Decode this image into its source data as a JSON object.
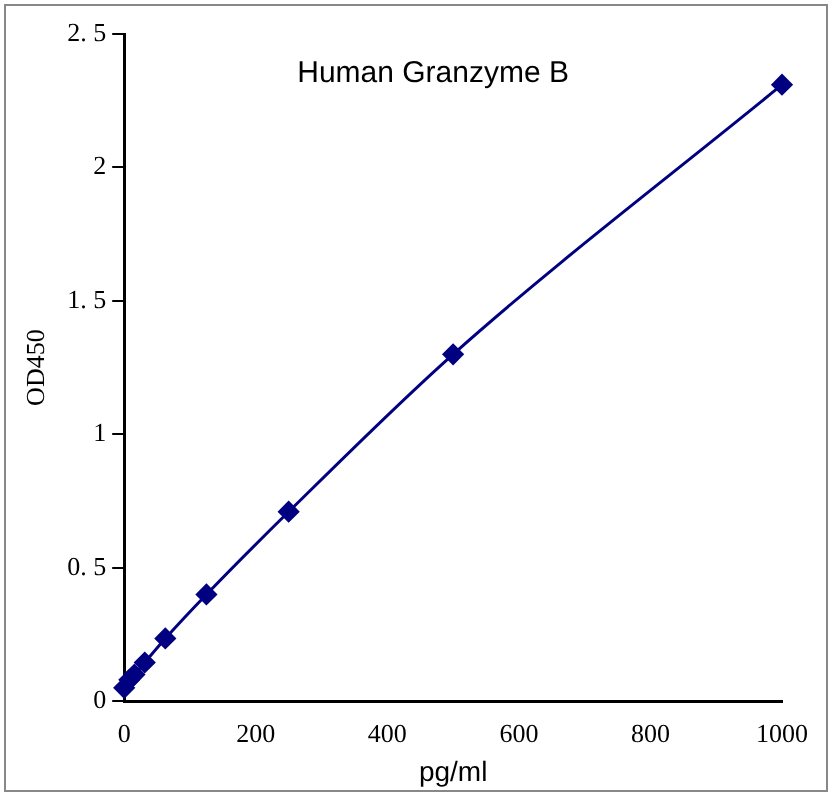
{
  "chart_data": {
    "type": "line",
    "title": "Human Granzyme B",
    "xlabel": "pg/ml",
    "ylabel": "OD450",
    "x": [
      0,
      7.8,
      15.6,
      31.25,
      62.5,
      125,
      250,
      500,
      1000
    ],
    "series": [
      {
        "color": "#000080",
        "values": [
          0.05,
          0.08,
          0.1,
          0.145,
          0.235,
          0.4,
          0.71,
          1.3,
          2.31
        ]
      }
    ],
    "xlim": [
      0,
      1000
    ],
    "xticks": [
      0,
      200,
      400,
      600,
      800,
      1000
    ],
    "ylim": [
      0,
      2.5
    ],
    "yticks": [
      0,
      {
        "value": 0.5,
        "label": "0. 5"
      },
      1,
      {
        "value": 1.5,
        "label": "1. 5"
      },
      2,
      {
        "value": 2.5,
        "label": "2. 5"
      }
    ],
    "marker": "diamond",
    "line_style": "solid",
    "grid": false,
    "legend": false
  }
}
